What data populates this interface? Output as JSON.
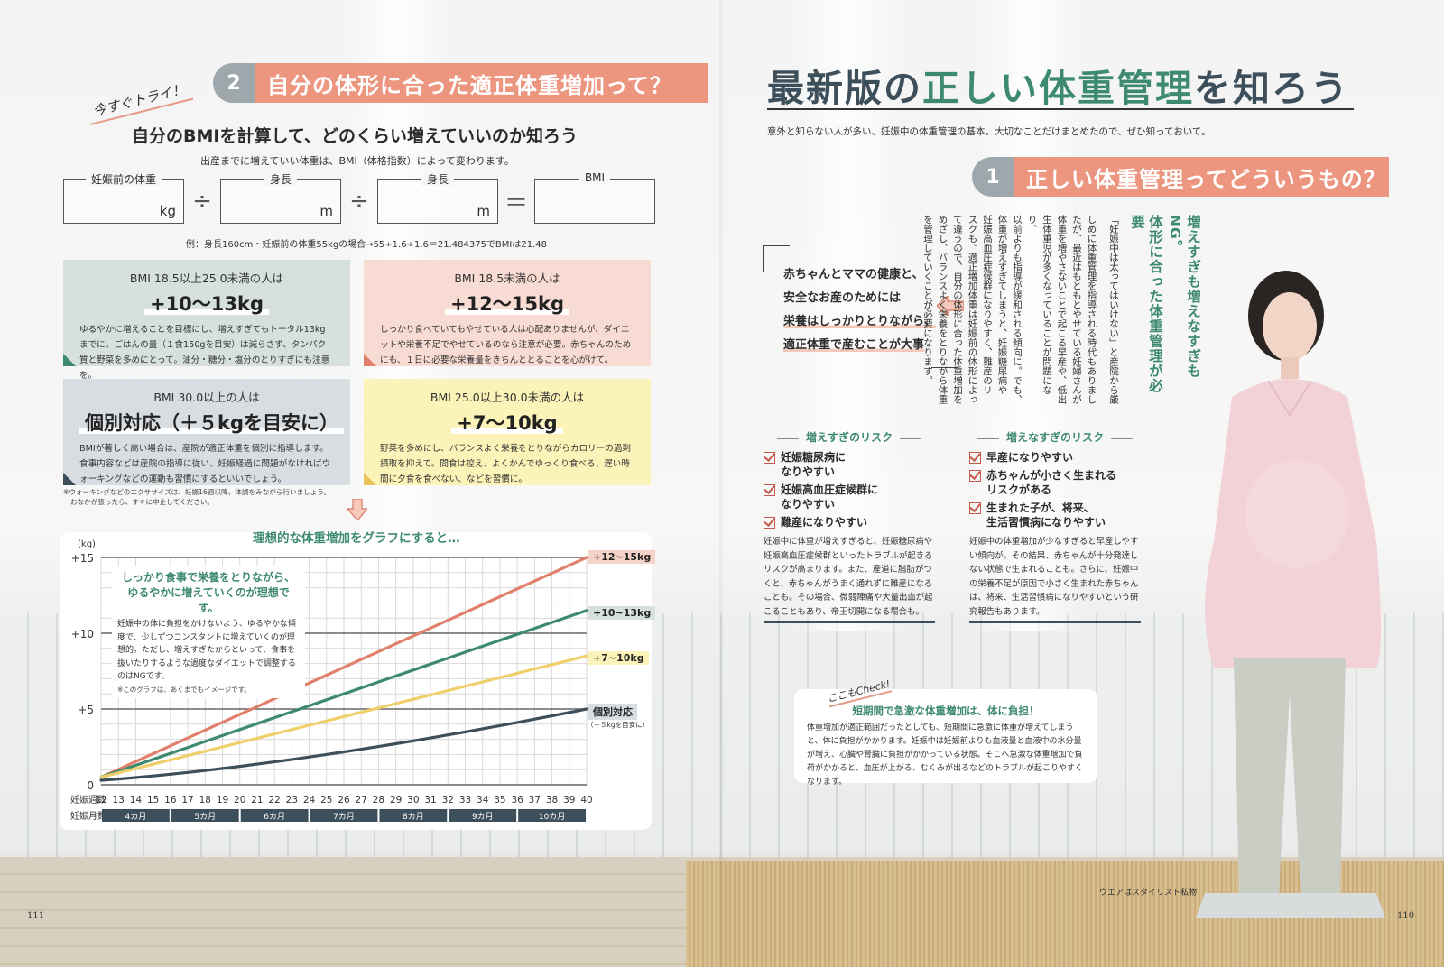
{
  "left_page": {
    "section": {
      "number": "2",
      "title": "自分の体形に合った適正体重増加って？"
    },
    "try_tag": "今すぐトライ！",
    "bmi_title": "自分のBMIを計算して、どのくらい増えていいのか知ろう",
    "bmi_subtitle": "出産までに増えていい体重は、BMI（体格指数）によって変わります。",
    "calculator": {
      "fields": [
        {
          "label": "妊娠前の体重",
          "unit": "kg"
        },
        {
          "label": "身長",
          "unit": "m"
        },
        {
          "label": "身長",
          "unit": "m"
        },
        {
          "label": "BMI",
          "unit": ""
        }
      ],
      "operators": [
        "÷",
        "÷",
        "＝"
      ],
      "example": "例：身長160cm・妊娠前の体重55kgの場合→55÷1.6÷1.6＝21.484375でBMIは21.48"
    },
    "bmi_cards": [
      {
        "condition": "BMI 18.5以上25.0未満の人は",
        "gain": "+10〜13kg",
        "color": "#d5e1da",
        "corner": "#3d8a6e",
        "description": "ゆるやかに増えることを目標にし、増えすぎてもトータル13kgまでに。ごはんの量（１食150gを目安）は減らさず、タンパク質と野菜を多めにとって。油分・糖分・塩分のとりすぎにも注意を。"
      },
      {
        "condition": "BMI 18.5未満の人は",
        "gain": "+12〜15kg",
        "color": "#f8dbd2",
        "corner": "#e0806a",
        "description": "しっかり食べていてもやせている人は心配ありませんが、ダイエットや栄養不足でやせているのなら注意が必要。赤ちゃんのためにも、１日に必要な栄養量をきちんととることを心がけて。"
      },
      {
        "condition": "BMI 30.0以上の人は",
        "gain": "個別対応（＋５kgを目安に）",
        "color": "#d8dde2",
        "corner": "#3e4f5c",
        "description": "BMIが著しく高い場合は、産院が適正体重を個別に指導します。食事内容などは産院の指導に従い、妊娠経過に問題がなければウォーキングなどの運動も習慣にするといいでしょう。"
      },
      {
        "condition": "BMI 25.0以上30.0未満の人は",
        "gain": "+7〜10kg",
        "color": "#fbf3b8",
        "corner": "#e8c45a",
        "description": "野菜を多めにし、バランスよく栄養をとりながらカロリーの過剰摂取を抑えて。間食は控え、よくかんでゆっくり食べる、遅い時間に夕食を食べない、などを習慣に。"
      }
    ],
    "footnote": [
      "※ウォーキングなどのエクササイズは、妊娠16週以降、体調をみながら行いましょう。",
      "おなかが張ったら、すぐに中止してください。"
    ],
    "chart_note": {
      "headline": [
        "しっかり食事で栄養をとりながら、",
        "ゆるやかに増えていくのが理想です。"
      ],
      "text": "妊娠中の体に負担をかけないよう、ゆるやかな傾度で、少しずつコンスタントに増えていくのが理想的。ただし、増えすぎたからといって、食事を抜いたりするような過度なダイエットで調整するのはNGです。",
      "remark": "※このグラフは、あくまでもイメージです。"
    },
    "page_number": "111"
  },
  "chart_data": {
    "type": "line",
    "title": "理想的な体重増加をグラフにすると…",
    "xlabel": "妊娠週数",
    "ylabel": "(kg)",
    "x": [
      12,
      13,
      14,
      15,
      16,
      17,
      18,
      19,
      20,
      21,
      22,
      23,
      24,
      25,
      26,
      27,
      28,
      29,
      30,
      31,
      32,
      33,
      34,
      35,
      36,
      37,
      38,
      39,
      40
    ],
    "ylim": [
      0,
      15
    ],
    "yticks": [
      "0",
      "+5",
      "+10",
      "+15"
    ],
    "grid": true,
    "month_row_label": "妊娠月数",
    "months": [
      {
        "label": "4カ月",
        "from": 12,
        "to": 16
      },
      {
        "label": "5カ月",
        "from": 16,
        "to": 20
      },
      {
        "label": "6カ月",
        "from": 20,
        "to": 24
      },
      {
        "label": "7カ月",
        "from": 24,
        "to": 28
      },
      {
        "label": "8カ月",
        "from": 28,
        "to": 32
      },
      {
        "label": "9カ月",
        "from": 32,
        "to": 36
      },
      {
        "label": "10カ月",
        "from": 36,
        "to": 40
      }
    ],
    "series": [
      {
        "name": "+12~15kg",
        "color": "#e0806a",
        "tag_bg": "#f6d3c8",
        "start": 0.5,
        "end": 15,
        "curve": 0
      },
      {
        "name": "+10~13kg",
        "color": "#3d8a6e",
        "tag_bg": "#d5e1da",
        "start": 0.5,
        "end": 11.5,
        "curve": 0
      },
      {
        "name": "+7~10kg",
        "color": "#efcf6a",
        "tag_bg": "#fbf3b8",
        "start": 0.5,
        "end": 8.5,
        "curve": 0
      },
      {
        "name": "個別対応",
        "sub": "（＋５kgを目安に）",
        "color": "#3e4f5c",
        "tag_bg": "#d8dde2",
        "start": 0.3,
        "end": 5,
        "curve": 0.6
      }
    ]
  },
  "right_page": {
    "title_parts": [
      {
        "text": "最新版の",
        "accent": false
      },
      {
        "text": "正しい体重管理",
        "accent": true
      },
      {
        "text": "を知ろう",
        "accent": false
      }
    ],
    "lead": "意外と知らない人が多い、妊娠中の体重管理の基本。大切なことだけまとめたので、ぜひ知っておいて。",
    "section": {
      "number": "1",
      "title": "正しい体重管理ってどういうもの？"
    },
    "quote": [
      "赤ちゃんとママの健康と、",
      "安全なお産のためには",
      "栄養はしっかりとりながら、",
      "適正体重で産むことが大事"
    ],
    "vertical_heading": [
      "増えすぎも増えなすぎもNG。",
      "体形に合った体重管理が必要"
    ],
    "vertical_body": [
      "「妊娠中は太ってはいけない」と産院から厳",
      "しめに体重管理を指導される時代もありまし",
      "たが、最近はもともとやせている妊婦さんが",
      "体重を増やさないことで起こる早産や、低出",
      "生体重児が多くなっていることが問題になり、",
      "以前よりも指導が緩和される傾向に。でも、",
      "体重が増えすぎてしまうと、妊娠糖尿病や",
      "妊娠高血圧症候群になりやすく、難産のリ",
      "スクも。適正増加体重は妊娠前の体形によっ",
      "て違うので、自分の体形に合った体重増加を",
      "めざし、バランスよく栄養をとりながら体重",
      "を管理していくことが必要になります。"
    ],
    "risks": [
      {
        "heading": "増えすぎのリスク",
        "items": [
          "妊娠糖尿病に\nなりやすい",
          "妊娠高血圧症候群に\nなりやすい",
          "難産になりやすい"
        ],
        "description": "妊娠中に体重が増えすぎると、妊娠糖尿病や妊娠高血圧症候群といったトラブルが起きるリスクが高まります。また、産道に脂肪がつくと、赤ちゃんがうまく通れずに難産になることも。その場合、微弱陣痛や大量出血が起こることもあり、帝王切開になる場合も。"
      },
      {
        "heading": "増えなすぎのリスク",
        "items": [
          "早産になりやすい",
          "赤ちゃんが小さく生まれる\nリスクがある",
          "生まれた子が、将来、\n生活習慣病になりやすい"
        ],
        "description": "妊娠中の体重増加が少なすぎると早産しやすい傾向が。その結果、赤ちゃんが十分発達しない状態で生まれることも。さらに、妊娠中の栄養不足が原因で小さく生まれた赤ちゃんは、将来、生活習慣病になりやすいという研究報告もあります。"
      }
    ],
    "check": {
      "tag": "ここもCheck!",
      "heading": "短期間で急激な体重増加は、体に負担！",
      "body": "体重増加が適正範囲だったとしても、短期間に急激に体重が増えてしまうと、体に負担がかかります。妊娠中は妊娠前よりも血液量と血液中の水分量が増え、心臓や腎臓に負担がかかっている状態。そこへ急激な体重増加で負荷がかかると、血圧が上がる、むくみが出るなどのトラブルが起こりやすくなります。"
    },
    "credit": "ウエアはスタイリスト私物",
    "page_number": "110"
  }
}
